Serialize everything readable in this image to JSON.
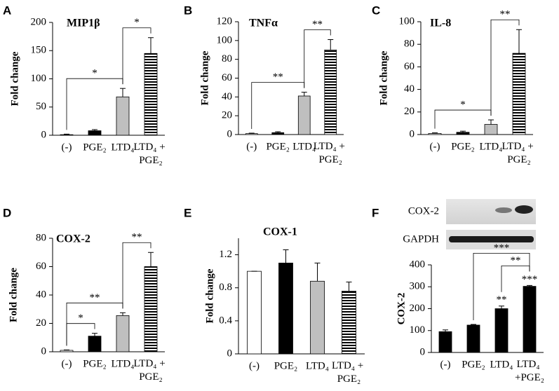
{
  "chart_data": [
    {
      "type": "bar",
      "panel": "A",
      "title": "MIP1β",
      "y_label": "Fold change",
      "categories": [
        "(-)",
        "PGE₂",
        "LTD₄",
        "LTD₄ +\nPGE₂"
      ],
      "values": [
        1,
        8,
        68,
        145
      ],
      "errors": [
        1,
        2,
        15,
        28
      ],
      "bar_fills": [
        "white",
        "black",
        "gray",
        "horizontal-stripes"
      ],
      "ylim": [
        0,
        200
      ],
      "yticks": [
        0,
        50,
        100,
        150,
        200
      ],
      "brackets": [
        {
          "from": 0,
          "to": 2,
          "label": "*"
        },
        {
          "from": 2,
          "to": 3,
          "label": "*"
        }
      ]
    },
    {
      "type": "bar",
      "panel": "B",
      "title": "TNFα",
      "y_label": "Fold change",
      "categories": [
        "(-)",
        "PGE₂",
        "LTD₄",
        "LTD₄ +\nPGE₂"
      ],
      "values": [
        1,
        2,
        41,
        90
      ],
      "errors": [
        0.5,
        1,
        4,
        11
      ],
      "bar_fills": [
        "white",
        "black",
        "gray",
        "horizontal-stripes"
      ],
      "ylim": [
        0,
        120
      ],
      "yticks": [
        0,
        20,
        40,
        60,
        80,
        100,
        120
      ],
      "brackets": [
        {
          "from": 0,
          "to": 2,
          "label": "**"
        },
        {
          "from": 2,
          "to": 3,
          "label": "**"
        }
      ]
    },
    {
      "type": "bar",
      "panel": "C",
      "title": "IL-8",
      "y_label": "Fold change",
      "categories": [
        "(-)",
        "PGE₂",
        "LTD₄",
        "LTD₄ +\nPGE₂"
      ],
      "values": [
        1,
        2,
        9,
        72
      ],
      "errors": [
        0.5,
        1,
        4,
        21
      ],
      "bar_fills": [
        "white",
        "black",
        "gray",
        "horizontal-stripes"
      ],
      "ylim": [
        0,
        100
      ],
      "yticks": [
        0,
        20,
        40,
        60,
        80,
        100
      ],
      "brackets": [
        {
          "from": 0,
          "to": 2,
          "label": "*"
        },
        {
          "from": 2,
          "to": 3,
          "label": "**"
        }
      ]
    },
    {
      "type": "bar",
      "panel": "D",
      "title": "COX-2",
      "y_label": "Fold change",
      "categories": [
        "(-)",
        "PGE₂",
        "LTD₄",
        "LTD₄ +\nPGE₂"
      ],
      "values": [
        1,
        11,
        25.5,
        60
      ],
      "errors": [
        0.3,
        2,
        2,
        10
      ],
      "bar_fills": [
        "white",
        "black",
        "gray",
        "horizontal-stripes"
      ],
      "ylim": [
        0,
        80
      ],
      "yticks": [
        0,
        20,
        40,
        60,
        80
      ],
      "brackets": [
        {
          "from": 0,
          "to": 1,
          "label": "*"
        },
        {
          "from": 0,
          "to": 2,
          "label": "**"
        },
        {
          "from": 2,
          "to": 3,
          "label": "**"
        }
      ]
    },
    {
      "type": "bar",
      "panel": "E",
      "title": "COX-1",
      "y_label": "Fold change",
      "categories": [
        "(-)",
        "PGE₂",
        "LTD₄",
        "LTD₄ +\nPGE₂"
      ],
      "values": [
        1.0,
        1.1,
        0.88,
        0.76
      ],
      "errors": [
        0,
        0.16,
        0.22,
        0.11
      ],
      "bar_fills": [
        "white",
        "black",
        "gray",
        "horizontal-stripes"
      ],
      "ylim": [
        0,
        1.4
      ],
      "yticks": [
        0,
        0.4,
        0.8,
        1.2
      ]
    },
    {
      "type": "bar",
      "panel": "F",
      "y_label": "COX-2",
      "blot_labels": [
        "COX-2",
        "GAPDH"
      ],
      "categories": [
        "(-)",
        "PGE₂",
        "LTD₄",
        "LTD₄\n+PGE₂"
      ],
      "values": [
        95,
        125,
        200,
        302
      ],
      "errors": [
        8,
        3,
        12,
        4
      ],
      "value_annotations": [
        null,
        null,
        "**",
        "***"
      ],
      "bar_fills": [
        "black",
        "black",
        "black",
        "black"
      ],
      "ylim": [
        0,
        400
      ],
      "yticks": [
        0,
        100,
        200,
        300,
        400
      ],
      "brackets": [
        {
          "from": 2,
          "to": 3,
          "label": "**"
        },
        {
          "from": 1,
          "to": 3,
          "label": "***"
        }
      ]
    }
  ]
}
